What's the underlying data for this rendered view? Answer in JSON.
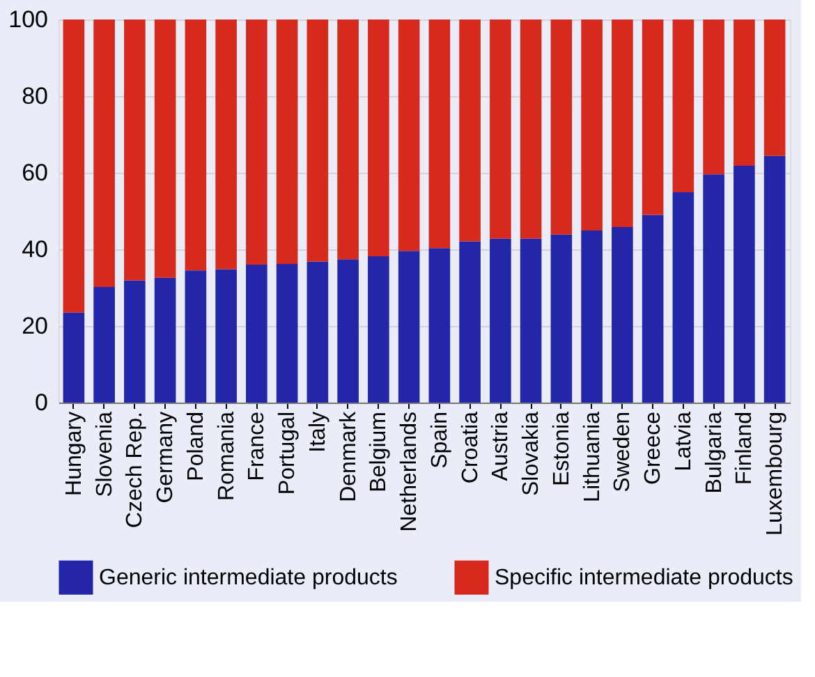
{
  "chart_data": {
    "type": "bar",
    "stacked": true,
    "categories": [
      "Hungary",
      "Slovenia",
      "Czech Rep.",
      "Germany",
      "Poland",
      "Romania",
      "France",
      "Portugal",
      "Italy",
      "Denmark",
      "Belgium",
      "Netherlands",
      "Spain",
      "Croatia",
      "Austria",
      "Slovakia",
      "Estonia",
      "Lithuania",
      "Sweden",
      "Greece",
      "Latvia",
      "Bulgaria",
      "Finland",
      "Luxembourg"
    ],
    "series": [
      {
        "name": "Generic intermediate products",
        "color": "#2326a8",
        "values": [
          23.5,
          30.2,
          31.9,
          32.6,
          34.5,
          34.8,
          36.0,
          36.2,
          36.8,
          37.4,
          38.2,
          39.6,
          40.3,
          42.1,
          42.8,
          42.8,
          43.9,
          44.9,
          45.8,
          49.0,
          54.9,
          59.6,
          61.8,
          64.4
        ]
      },
      {
        "name": "Specific intermediate products",
        "color": "#d62a1e",
        "values": [
          76.5,
          69.8,
          68.1,
          67.4,
          65.5,
          65.2,
          64.0,
          63.8,
          63.2,
          62.6,
          61.8,
          60.4,
          59.7,
          57.9,
          57.2,
          57.2,
          56.1,
          55.1,
          54.2,
          51.0,
          45.1,
          40.4,
          38.2,
          35.6
        ]
      }
    ],
    "ylim": [
      0,
      100
    ],
    "yticks": [
      0,
      20,
      40,
      60,
      80,
      100
    ],
    "grid": "y",
    "legend": "bottom"
  }
}
